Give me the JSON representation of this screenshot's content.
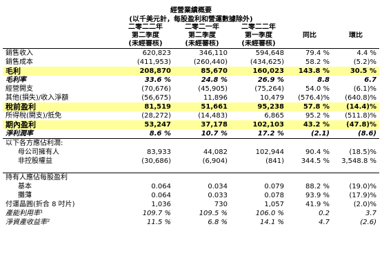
{
  "title": "經營業績概要",
  "subtitle": "(以千美元計，每股盈利和營運數據除外)",
  "header": {
    "col1": [
      "二零二二年",
      "第二季度",
      "(未經審核)"
    ],
    "col2": [
      "二零二一年",
      "第二季度",
      "(未經審核)"
    ],
    "col3": [
      "二零二二年",
      "第一季度",
      "(未經審核)"
    ],
    "yoy": "同比",
    "qoq": "環比"
  },
  "rows": [
    {
      "label": "銷售收入",
      "v": [
        "620,823",
        "346,110",
        "594,648",
        "79.4 %",
        "4.4 %"
      ]
    },
    {
      "label": "銷售成本",
      "v": [
        "(411,953)",
        "(260,440)",
        "(434,625)",
        "58.2 %",
        "(5.2)%"
      ]
    },
    {
      "label": "毛利",
      "v": [
        "208,870",
        "85,670",
        "160,023",
        "143.8 %",
        "30.5 %"
      ]
    },
    {
      "label": "毛利率",
      "v": [
        "33.6 %",
        "24.8 %",
        "26.9 %",
        "8.8",
        "6.7"
      ]
    },
    {
      "label": "經營開支",
      "v": [
        "(70,676)",
        "(45,905)",
        "(75,264)",
        "54.0 %",
        "(6.1)%"
      ]
    },
    {
      "label": "其他(損失)/收入淨額",
      "v": [
        "(56,675)",
        "11,896",
        "10,479",
        "(576.4)%",
        "(640.8)%"
      ]
    },
    {
      "label": "稅前盈利",
      "v": [
        "81,519",
        "51,661",
        "95,238",
        "57.8 %",
        "(14.4)%"
      ]
    },
    {
      "label": "所得稅(開支)/抵免",
      "v": [
        "(28,272)",
        "(14,483)",
        "6,865",
        "95.2 %",
        "(511.8)%"
      ]
    },
    {
      "label": "期內盈利",
      "v": [
        "53,247",
        "37,178",
        "102,103",
        "43.2 %",
        "(47.8)%"
      ]
    },
    {
      "label": "淨利潤率",
      "v": [
        "8.6 %",
        "10.7 %",
        "17.2 %",
        "(2.1)",
        "(8.6)"
      ]
    },
    {
      "label": "以下各方應佔利潤:",
      "v": [
        "",
        "",
        "",
        "",
        ""
      ]
    },
    {
      "label": "母公司擁有人",
      "v": [
        "83,933",
        "44,082",
        "102,944",
        "90.4 %",
        "(18.5)%"
      ]
    },
    {
      "label": "非控股權益",
      "v": [
        "(30,686)",
        "(6,904)",
        "(841)",
        "344.5 %",
        "3,548.8 %"
      ]
    },
    {
      "label": "持有人應佔每股盈利",
      "v": [
        "",
        "",
        "",
        "",
        ""
      ]
    },
    {
      "label": "基本",
      "v": [
        "0.064",
        "0.034",
        "0.079",
        "88.2 %",
        "(19.0)%"
      ]
    },
    {
      "label": "攤薄",
      "v": [
        "0.064",
        "0.033",
        "0.078",
        "93.9 %",
        "(17.9)%"
      ]
    },
    {
      "label": "付運晶圓(折合 8 吋片)",
      "v": [
        "1,036",
        "730",
        "1,057",
        "41.9 %",
        "(2.0)%"
      ]
    },
    {
      "label": "產能利用率¹",
      "v": [
        "109.7 %",
        "109.5 %",
        "106.0 %",
        "0.2",
        "3.7"
      ]
    },
    {
      "label": "淨資產收益率²",
      "v": [
        "11.5 %",
        "6.8 %",
        "14.1 %",
        "4.7",
        "(2.6)"
      ]
    }
  ]
}
